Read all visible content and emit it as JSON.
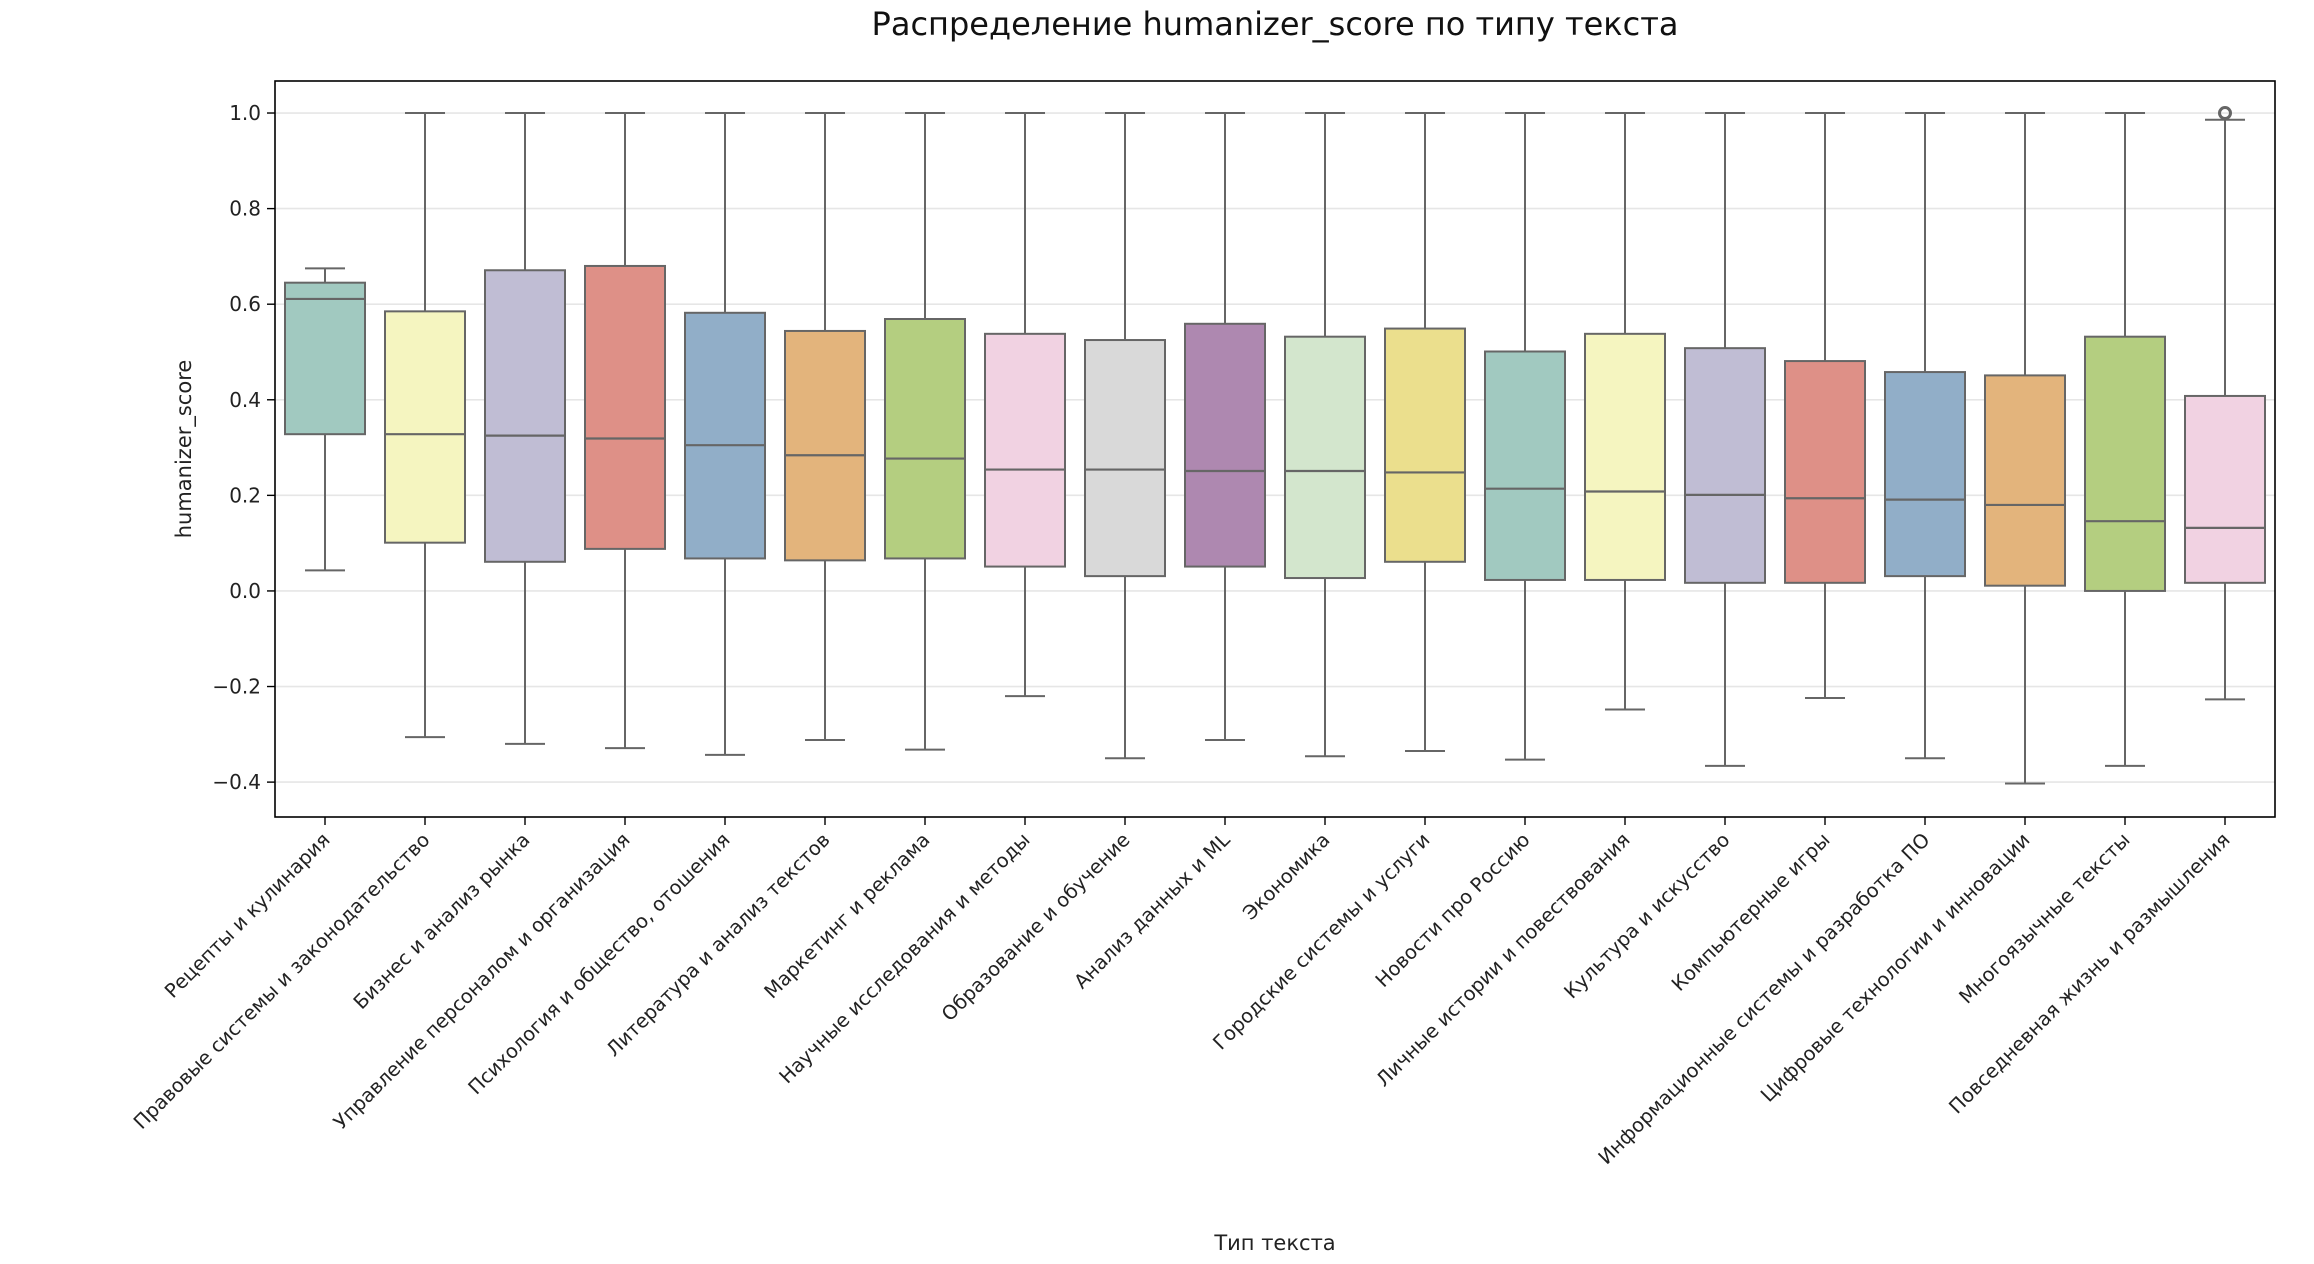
{
  "chart_data": {
    "type": "box",
    "title": "Распределение humanizer_score по типу текста",
    "xlabel": "Тип текста",
    "ylabel": "humanizer_score",
    "ylim": [
      -0.473,
      1.067
    ],
    "yticks": [
      -0.4,
      -0.2,
      0.0,
      0.2,
      0.4,
      0.6,
      0.8,
      1.0
    ],
    "ytick_labels": [
      "−0.4",
      "−0.2",
      "0.0",
      "0.2",
      "0.4",
      "0.6",
      "0.8",
      "1.0"
    ],
    "grid": "horizontal",
    "categories": [
      "Рецепты и кулинария",
      "Правовые системы и законодательство",
      "Бизнес и анализ рынка",
      "Управление персоналом и организация",
      "Психология и общество, отошения",
      "Литература и анализ текстов",
      "Маркетинг и реклама",
      "Научные исследования и методы",
      "Образование и обучение",
      "Анализ данных и ML",
      "Экономика",
      "Городские системы и услуги",
      "Новости про Россию",
      "Личные истории и повествования",
      "Культура и искусство",
      "Компьютерные игры",
      "Информационные системы и разработка ПО",
      "Цифровые технологии и инновации",
      "Многоязычные тексты",
      "Повседневная жизнь и размышления"
    ],
    "boxes": [
      {
        "whislo": 0.043,
        "q1": 0.328,
        "median": 0.611,
        "q3": 0.645,
        "whishi": 0.675,
        "fliers": []
      },
      {
        "whislo": -0.306,
        "q1": 0.101,
        "median": 0.328,
        "q3": 0.585,
        "whishi": 1.0,
        "fliers": []
      },
      {
        "whislo": -0.32,
        "q1": 0.061,
        "median": 0.325,
        "q3": 0.671,
        "whishi": 1.0,
        "fliers": []
      },
      {
        "whislo": -0.329,
        "q1": 0.088,
        "median": 0.319,
        "q3": 0.68,
        "whishi": 1.0,
        "fliers": []
      },
      {
        "whislo": -0.343,
        "q1": 0.068,
        "median": 0.305,
        "q3": 0.582,
        "whishi": 1.0,
        "fliers": []
      },
      {
        "whislo": -0.312,
        "q1": 0.064,
        "median": 0.284,
        "q3": 0.544,
        "whishi": 1.0,
        "fliers": []
      },
      {
        "whislo": -0.332,
        "q1": 0.068,
        "median": 0.277,
        "q3": 0.569,
        "whishi": 1.0,
        "fliers": []
      },
      {
        "whislo": -0.22,
        "q1": 0.051,
        "median": 0.254,
        "q3": 0.538,
        "whishi": 1.0,
        "fliers": []
      },
      {
        "whislo": -0.35,
        "q1": 0.031,
        "median": 0.254,
        "q3": 0.525,
        "whishi": 1.0,
        "fliers": []
      },
      {
        "whislo": -0.312,
        "q1": 0.051,
        "median": 0.251,
        "q3": 0.559,
        "whishi": 1.0,
        "fliers": []
      },
      {
        "whislo": -0.346,
        "q1": 0.027,
        "median": 0.251,
        "q3": 0.532,
        "whishi": 1.0,
        "fliers": []
      },
      {
        "whislo": -0.335,
        "q1": 0.061,
        "median": 0.248,
        "q3": 0.549,
        "whishi": 1.0,
        "fliers": []
      },
      {
        "whislo": -0.353,
        "q1": 0.023,
        "median": 0.214,
        "q3": 0.501,
        "whishi": 1.0,
        "fliers": []
      },
      {
        "whislo": -0.248,
        "q1": 0.023,
        "median": 0.208,
        "q3": 0.538,
        "whishi": 1.0,
        "fliers": []
      },
      {
        "whislo": -0.366,
        "q1": 0.017,
        "median": 0.201,
        "q3": 0.508,
        "whishi": 1.0,
        "fliers": []
      },
      {
        "whislo": -0.224,
        "q1": 0.017,
        "median": 0.194,
        "q3": 0.481,
        "whishi": 1.0,
        "fliers": []
      },
      {
        "whislo": -0.35,
        "q1": 0.031,
        "median": 0.191,
        "q3": 0.458,
        "whishi": 1.0,
        "fliers": []
      },
      {
        "whislo": -0.403,
        "q1": 0.011,
        "median": 0.18,
        "q3": 0.451,
        "whishi": 1.0,
        "fliers": []
      },
      {
        "whislo": -0.366,
        "q1": 0.0,
        "median": 0.146,
        "q3": 0.532,
        "whishi": 1.0,
        "fliers": []
      },
      {
        "whislo": -0.227,
        "q1": 0.017,
        "median": 0.132,
        "q3": 0.408,
        "whishi": 0.986,
        "fliers": [
          1.0
        ]
      }
    ],
    "colors": [
      "#a1c9c0",
      "#f5f5c0",
      "#c0bdd4",
      "#de9087",
      "#91aec8",
      "#e3b47c",
      "#b4ce80",
      "#f1d2e2",
      "#d9d9d9",
      "#ae88b0",
      "#d3e6cd",
      "#ebdf8d",
      "#a1c9c0",
      "#f5f5c0",
      "#c0bdd4",
      "#de9087",
      "#91aec8",
      "#e3b47c",
      "#b4ce80",
      "#f1d2e2"
    ],
    "line_color": "#666666"
  }
}
